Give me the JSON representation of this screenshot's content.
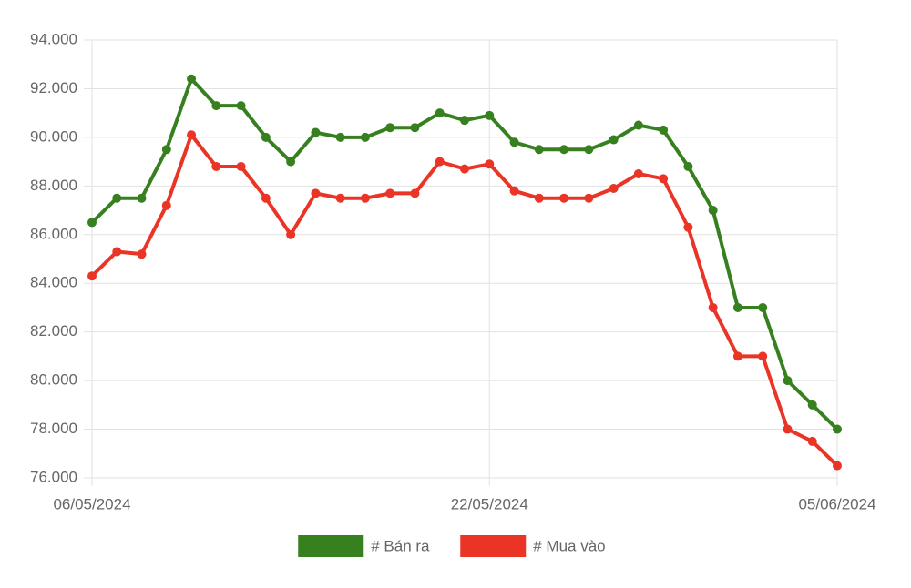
{
  "chart_data": {
    "type": "line",
    "categories": [
      "06/05/2024",
      null,
      null,
      null,
      null,
      null,
      null,
      null,
      null,
      null,
      null,
      null,
      null,
      null,
      null,
      null,
      "22/05/2024",
      null,
      null,
      null,
      null,
      null,
      null,
      null,
      null,
      null,
      null,
      null,
      null,
      null,
      "05/06/2024"
    ],
    "series": [
      {
        "name": "# Bán ra",
        "color": "#37801f",
        "values": [
          86500,
          87500,
          87500,
          89500,
          92400,
          91300,
          91300,
          90000,
          89000,
          90200,
          90000,
          90000,
          90400,
          90400,
          91000,
          90700,
          90900,
          89800,
          89500,
          89500,
          89500,
          89900,
          90500,
          90300,
          88800,
          87000,
          83000,
          83000,
          80000,
          79000,
          78000
        ]
      },
      {
        "name": "# Mua vào",
        "color": "#ea3426",
        "values": [
          84300,
          85300,
          85200,
          87200,
          90100,
          88800,
          88800,
          87500,
          86000,
          87700,
          87500,
          87500,
          87700,
          87700,
          89000,
          88700,
          88900,
          87800,
          87500,
          87500,
          87500,
          87900,
          88500,
          88300,
          86300,
          83000,
          81000,
          81000,
          78000,
          77500,
          76500
        ]
      }
    ],
    "ylim": [
      76000,
      94000
    ],
    "yticks": [
      {
        "value": 76000,
        "label": "76.000"
      },
      {
        "value": 78000,
        "label": "78.000"
      },
      {
        "value": 80000,
        "label": "80.000"
      },
      {
        "value": 82000,
        "label": "82.000"
      },
      {
        "value": 84000,
        "label": "84.000"
      },
      {
        "value": 86000,
        "label": "86.000"
      },
      {
        "value": 88000,
        "label": "88.000"
      },
      {
        "value": 90000,
        "label": "90.000"
      },
      {
        "value": 92000,
        "label": "92.000"
      },
      {
        "value": 94000,
        "label": "94.000"
      }
    ],
    "grid": true,
    "legend": "bottom"
  }
}
